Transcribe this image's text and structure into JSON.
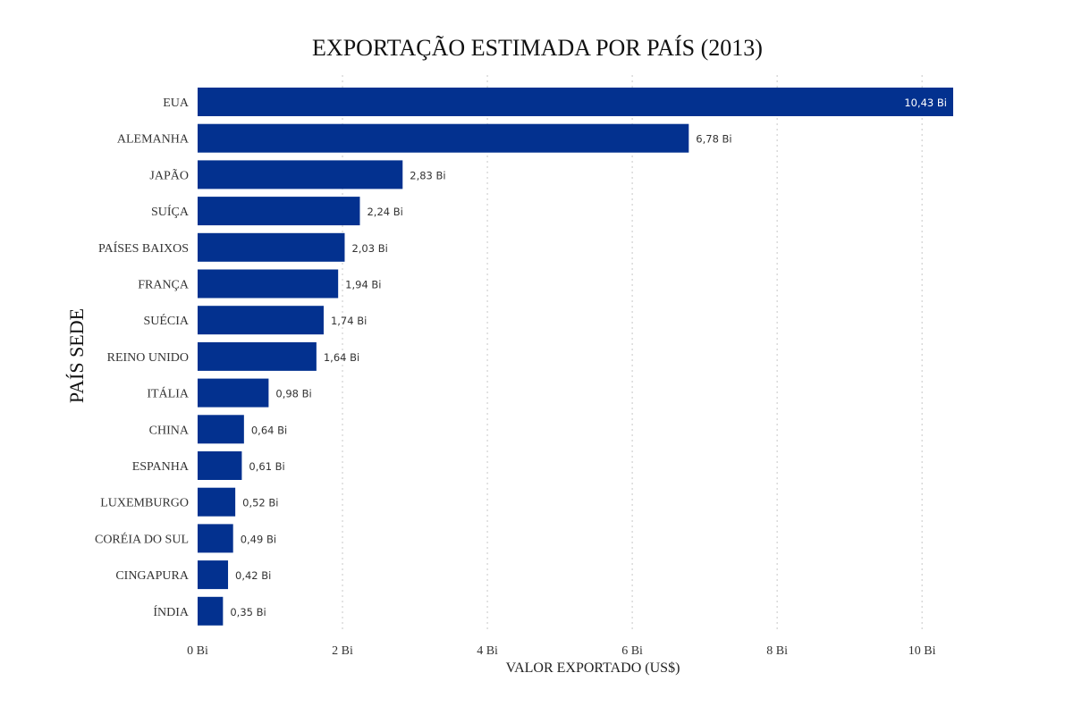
{
  "chart_data": {
    "type": "bar",
    "orientation": "horizontal",
    "title": "EXPORTAÇÃO ESTIMADA POR PAÍS (2013)",
    "xlabel": "VALOR EXPORTADO (US$)",
    "ylabel": "PAÍS SEDE",
    "categories": [
      "EUA",
      "ALEMANHA",
      "JAPÃO",
      "SUÍÇA",
      "PAÍSES BAIXOS",
      "FRANÇA",
      "SUÉCIA",
      "REINO UNIDO",
      "ITÁLIA",
      "CHINA",
      "ESPANHA",
      "LUXEMBURGO",
      "CORÉIA DO SUL",
      "CINGAPURA",
      "ÍNDIA"
    ],
    "values": [
      10.43,
      6.78,
      2.83,
      2.24,
      2.03,
      1.94,
      1.74,
      1.64,
      0.98,
      0.64,
      0.61,
      0.52,
      0.49,
      0.42,
      0.35
    ],
    "data_labels": [
      "10,43 Bi",
      "6,78 Bi",
      "2,83 Bi",
      "2,24 Bi",
      "2,03 Bi",
      "1,94 Bi",
      "1,74 Bi",
      "1,64 Bi",
      "0,98 Bi",
      "0,64 Bi",
      "0,61 Bi",
      "0,52 Bi",
      "0,49 Bi",
      "0,42 Bi",
      "0,35 Bi"
    ],
    "xticks": [
      0,
      2,
      4,
      6,
      8,
      10
    ],
    "xtick_labels": [
      "0 Bi",
      "2 Bi",
      "4 Bi",
      "6 Bi",
      "8 Bi",
      "10 Bi"
    ],
    "xlim": [
      0,
      10.43
    ],
    "grid": "vertical dotted",
    "legend": "none",
    "bar_color": "#03318f",
    "label_color_inside": "#ffffff",
    "label_color_outside": "#333333"
  }
}
